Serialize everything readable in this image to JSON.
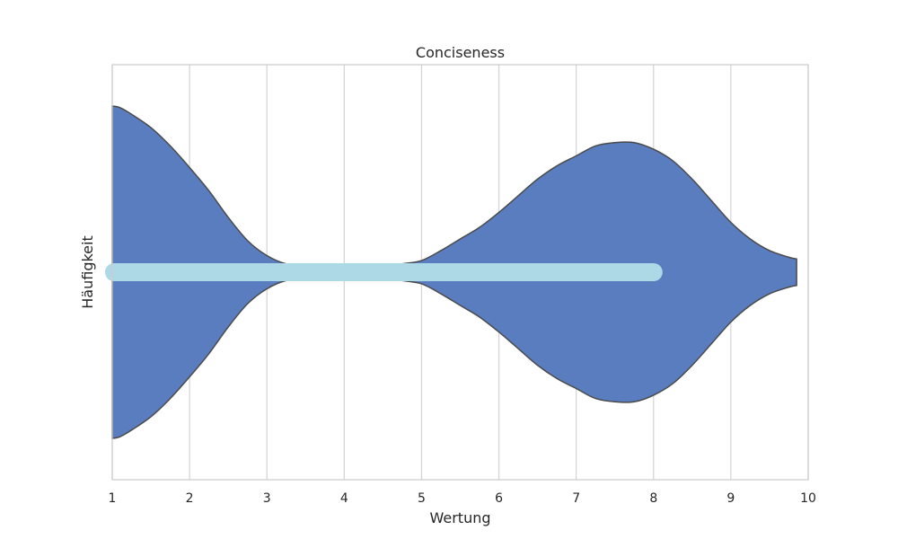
{
  "chart_data": {
    "type": "violin",
    "title": "Conciseness",
    "xlabel": "Wertung",
    "ylabel": "Häufigkeit",
    "xlim": [
      1,
      10
    ],
    "x_ticks": [
      1,
      2,
      3,
      4,
      5,
      6,
      7,
      8,
      9,
      10
    ],
    "grid": "vertical",
    "orientation": "horizontal",
    "colors": {
      "violin_fill": "#5a7dc0",
      "violin_edge": "#4a4a4a",
      "bar": "#add8e6",
      "grid": "#d3d3d3",
      "frame": "#cccccc"
    },
    "density": {
      "x": [
        1.0,
        1.1,
        1.25,
        1.5,
        1.75,
        2.0,
        2.25,
        2.5,
        2.75,
        3.0,
        3.25,
        3.5,
        4.0,
        4.5,
        4.75,
        5.0,
        5.25,
        5.5,
        5.75,
        6.0,
        6.25,
        6.5,
        6.75,
        7.0,
        7.25,
        7.5,
        7.75,
        8.0,
        8.25,
        8.5,
        8.75,
        9.0,
        9.25,
        9.5,
        9.75,
        9.85
      ],
      "half_width": [
        1.0,
        0.99,
        0.95,
        0.87,
        0.76,
        0.63,
        0.49,
        0.33,
        0.19,
        0.1,
        0.05,
        0.04,
        0.03,
        0.03,
        0.05,
        0.07,
        0.13,
        0.2,
        0.27,
        0.36,
        0.46,
        0.56,
        0.64,
        0.7,
        0.76,
        0.78,
        0.78,
        0.74,
        0.67,
        0.56,
        0.43,
        0.3,
        0.2,
        0.13,
        0.09,
        0.08
      ]
    },
    "range_bar": {
      "start": 1,
      "end": 8
    }
  }
}
